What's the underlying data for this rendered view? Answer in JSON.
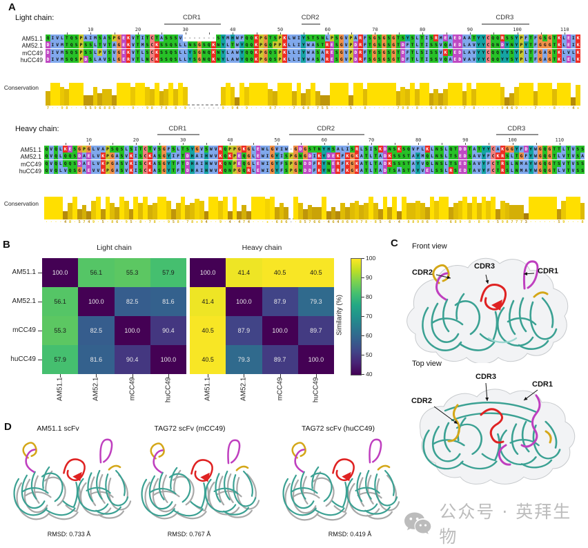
{
  "figure": {
    "panel_a": {
      "label": "A",
      "chains": [
        {
          "id": "light",
          "title": "Light chain:",
          "conservation_label": "Conservation",
          "cdr_regions": [
            {
              "label": "CDR1",
              "start": 26,
              "end": 37
            },
            {
              "label": "CDR2",
              "start": 55,
              "end": 58
            },
            {
              "label": "CDR3",
              "start": 93,
              "end": 102
            }
          ],
          "ruler": [
            10,
            20,
            30,
            40,
            50,
            60,
            70,
            80,
            90,
            100,
            110
          ],
          "sequences": [
            {
              "name": "AM51.1",
              "seq": "QIVLTQSPAIMSASPGEKVTITCTASSSV-------SYMHWFQQKPGTSPKLWIYSTSNLPSGVPARFSGSGSGTSYSLTISRMEAEDAATYYCQQRSSYPFTFGSGTKLEIK"
            },
            {
              "name": "AM52.1",
              "seq": "DIVMTQSPSSLTVTAGEKVTMSCKSSQSLLNSGSQKNYLTWYQQKPGQPPKLLIYWASTRESGVPDRFTGSGSGTDFTLTISSVQAEDLAVYYCQNDYNYPYTFGGGTKLEIK"
            },
            {
              "name": "mCC49",
              "seq": "DIVMSQSPSSLPVSVGEKVTLSCKSSQSLLYSGNQKNYLAWYQQKPGQSPKLLIYWASARESGVPDRFTGSGSGTDFTLSISSVKTEDLAVYYCQQYYSYPLTFGAGTKLVLK"
            },
            {
              "name": "huCC49",
              "seq": "DIVMSQSPDSLAVSLGERVTLNCKSSQSLLYSGNQKNYLAWYQQKPGQSPKLLIYWASARESGVPDRFSGSGSGTDFTLTISSVQAEDVAVYYCQQYYSYPLTFGAGTKLELK"
            }
          ],
          "conservation": "7**98***5596885***9**98*78*8*9-------9*94*9****87***7*68*755****5**8******798*8**6868***7*8*****9469***7***8***4+"
        },
        {
          "id": "heavy",
          "title": "Heavy chain:",
          "conservation_label": "Conservation",
          "cdr_regions": [
            {
              "label": "CDR1",
              "start": 25,
              "end": 33
            },
            {
              "label": "CDR2",
              "start": 53,
              "end": 68
            },
            {
              "label": "CDR3",
              "start": 97,
              "end": 105
            }
          ],
          "ruler": [
            10,
            20,
            30,
            40,
            50,
            60,
            70,
            80,
            90,
            100,
            110
          ],
          "sequences": [
            {
              "name": "AM51.1",
              "seq": "QVQLKESGPGLVAPSQSLSITCTVSGFSLTSYGVSWVRQPPGKGLEWLGVIW-GDGSTNYHSALISRLSISKDNSKSQVFLKLNSLQTDDTATYYCAKGGYFDYWGQGTTLTVSS"
            },
            {
              "name": "AM52.1",
              "seq": "QVQLQQSDAELVKPGASVKISCKASGYIFTDHAIHWVKQKPEQGLEWIGYISPGNGDIKYDEKFKGKATLTADKSSSTAYMQLNSLTSEDSAVYFCKRSLTGFYWGQGTLVTVSA"
            },
            {
              "name": "mCC49",
              "seq": "QVQLQQSDAELVKPGASVKISCKASGYTFTDHAIHWVKQNPEQGLEWIGYFSPGNDDFKYNERFKGKATLTADKSSSTAYVQLNSLTSEDSAVYFCTRSLNMAYWGQGTSVTVSS"
            },
            {
              "name": "huCC49",
              "seq": "QVQLVQSGAEVVKPGASVKISCKASGYTFTDHAIHWVKQNPGQRLEWIGYFSPGNDDFKYNERFKGKATLTADTSASTAYVELSSLRSEDTAVYFCTRSLNMAYWGQGTLVTVSS"
            }
          ],
          "conservation": "****48*5749*5*86*95*8*78**958*78+94**9*4*474***+*686-*85766*464868978*85*6*4*88986*9**689*8*8*9*5987773******59***8"
        }
      ]
    },
    "panel_b": {
      "label": "B",
      "chart_data": [
        {
          "type": "heatmap",
          "title": "Light chain",
          "row_labels": [
            "AM51.1",
            "AM52.1",
            "mCC49",
            "huCC49"
          ],
          "col_labels": [
            "AM51.1",
            "AM52.1",
            "mCC49",
            "huCC49"
          ],
          "values": [
            [
              100.0,
              56.1,
              55.3,
              57.9
            ],
            [
              56.1,
              100.0,
              82.5,
              81.6
            ],
            [
              55.3,
              82.5,
              100.0,
              90.4
            ],
            [
              57.9,
              81.6,
              90.4,
              100.0
            ]
          ]
        },
        {
          "type": "heatmap",
          "title": "Heavy chain",
          "row_labels": [
            "AM51.1",
            "AM52.1",
            "mCC49",
            "huCC49"
          ],
          "col_labels": [
            "AM51.1",
            "AM52.1",
            "mCC49",
            "huCC49"
          ],
          "values": [
            [
              100.0,
              41.4,
              40.5,
              40.5
            ],
            [
              41.4,
              100.0,
              87.9,
              79.3
            ],
            [
              40.5,
              87.9,
              100.0,
              89.7
            ],
            [
              40.5,
              79.3,
              89.7,
              100.0
            ]
          ]
        }
      ],
      "colorbar": {
        "label": "Similarity (%)",
        "min": 40,
        "max": 100,
        "ticks": [
          100,
          90,
          80,
          70,
          60,
          50,
          40
        ]
      }
    },
    "panel_c": {
      "label": "C",
      "views": [
        {
          "title": "Front view",
          "annotations": [
            {
              "label": "CDR2"
            },
            {
              "label": "CDR3"
            },
            {
              "label": "CDR1"
            }
          ]
        },
        {
          "title": "Top view",
          "annotations": [
            {
              "label": "CDR3"
            },
            {
              "label": "CDR1"
            },
            {
              "label": "CDR2"
            }
          ]
        }
      ]
    },
    "panel_d": {
      "label": "D",
      "structures": [
        {
          "title": "AM51.1 scFv",
          "rmsd": "RMSD: 0.733 Å"
        },
        {
          "title": "TAG72 scFv (mCC49)",
          "rmsd": "RMSD: 0.767 Å"
        },
        {
          "title": "TAG72 scFv (huCC49)",
          "rmsd": "RMSD: 0.419 Å"
        }
      ]
    },
    "watermark": {
      "text": "公众号 · 英拜生物"
    }
  },
  "colors": {
    "residue_classes": {
      "hydrophobic": "#80a8ec",
      "positive": "#ed2d24",
      "negative": "#bf49c3",
      "polar": "#27c127",
      "cysteine": "#f08080",
      "glycine": "#f09048",
      "proline": "#c9c92e",
      "aromatic": "#15a4a4",
      "gap": "#ffffff"
    },
    "conservation_low": "#8a5a12",
    "conservation_high": "#ffdf00",
    "cdr1": "#bf3fbf",
    "cdr2": "#d4a718",
    "cdr3": "#df2222",
    "structure_teal": "#3ba193",
    "structure_gray": "#a8a8a8",
    "viridis": [
      "#440154",
      "#482475",
      "#414487",
      "#355f8d",
      "#2a788e",
      "#21918c",
      "#22a884",
      "#44bf70",
      "#7ad151",
      "#bddf26",
      "#fde725"
    ]
  }
}
